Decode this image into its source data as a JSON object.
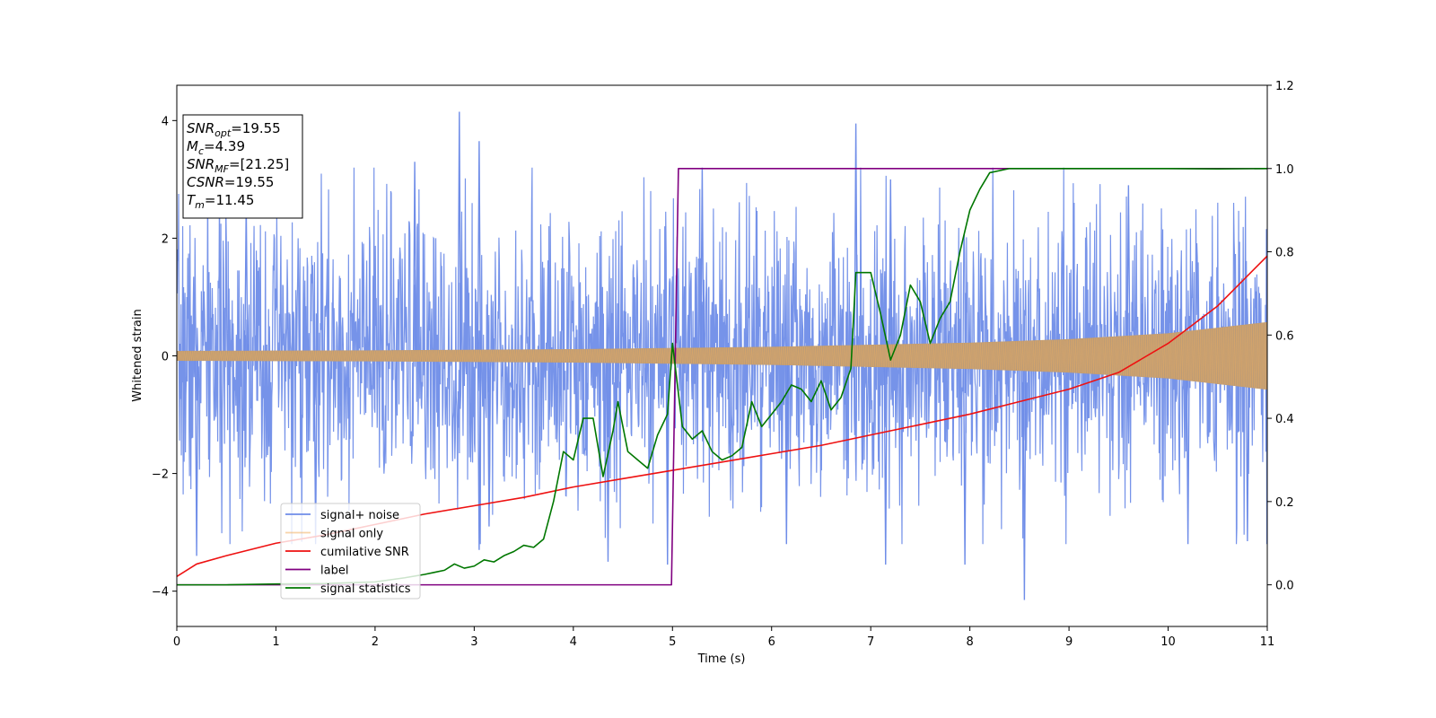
{
  "chart_data": {
    "type": "line",
    "title": "",
    "xlabel": "Time (s)",
    "ylabel_left": "Whitened strain",
    "ylabel_right": "",
    "xlim": [
      0,
      11
    ],
    "ylim_left": [
      -4.6,
      4.6
    ],
    "ylim_right": [
      -0.1,
      1.2
    ],
    "xticks": [
      0,
      1,
      2,
      3,
      4,
      5,
      6,
      7,
      8,
      9,
      10,
      11
    ],
    "yticks_left": [
      -4,
      -2,
      0,
      2,
      4
    ],
    "yticks_right": [
      0.0,
      0.2,
      0.4,
      0.6,
      0.8,
      1.0,
      1.2
    ],
    "grid": false,
    "legend_position": "lower-left",
    "colors": {
      "signal_noise": "#6f8de8",
      "signal_only": "#f0b060",
      "signal_overlap": "#bc9b76",
      "cumulative_snr": "#ee1111",
      "label": "#800080",
      "signal_statistics": "#007700"
    },
    "annotation": {
      "lines": [
        {
          "main": "SNR",
          "sub": "opt",
          "value": "=19.55"
        },
        {
          "main": "M",
          "sub": "c",
          "value": "=4.39"
        },
        {
          "main": "SNR",
          "sub": "MF",
          "value": "=[21.25]"
        },
        {
          "main": "CSNR",
          "sub": "",
          "value": "=19.55"
        },
        {
          "main": "T",
          "sub": "m",
          "value": "=11.45"
        }
      ]
    },
    "series": [
      {
        "name": "signal+ noise",
        "axis": "left",
        "kind": "noise",
        "envelope": [
          [
            0,
            2.3
          ],
          [
            5,
            2.3
          ],
          [
            11,
            2.3
          ]
        ],
        "spikes": [
          [
            0.2,
            -3.4
          ],
          [
            0.7,
            2.6
          ],
          [
            1.4,
            -3.2
          ],
          [
            2.4,
            3.3
          ],
          [
            2.85,
            4.15
          ],
          [
            3.05,
            3.65
          ],
          [
            3.05,
            -3.3
          ],
          [
            3.15,
            -2.9
          ],
          [
            4.35,
            -3.5
          ],
          [
            4.95,
            -3.55
          ],
          [
            5.3,
            3.2
          ],
          [
            6.15,
            -3.2
          ],
          [
            6.85,
            3.95
          ],
          [
            7.15,
            -3.55
          ],
          [
            7.2,
            3.0
          ],
          [
            7.95,
            -3.55
          ],
          [
            8.55,
            -4.15
          ],
          [
            9.6,
            2.9
          ],
          [
            10.2,
            -3.2
          ],
          [
            10.8,
            -3.15
          ]
        ]
      },
      {
        "name": "signal only",
        "axis": "left",
        "kind": "chirp",
        "amplitude": [
          [
            0,
            0.08
          ],
          [
            2,
            0.09
          ],
          [
            4,
            0.11
          ],
          [
            6,
            0.15
          ],
          [
            8,
            0.22
          ],
          [
            9,
            0.28
          ],
          [
            10,
            0.38
          ],
          [
            11,
            0.57
          ]
        ]
      },
      {
        "name": "cumilative SNR",
        "axis": "right",
        "kind": "line",
        "points": [
          [
            0,
            0.02
          ],
          [
            0.2,
            0.05
          ],
          [
            0.5,
            0.07
          ],
          [
            1,
            0.1
          ],
          [
            1.5,
            0.12
          ],
          [
            2,
            0.145
          ],
          [
            2.5,
            0.17
          ],
          [
            3,
            0.19
          ],
          [
            3.5,
            0.21
          ],
          [
            4,
            0.235
          ],
          [
            4.5,
            0.255
          ],
          [
            5,
            0.275
          ],
          [
            5.5,
            0.295
          ],
          [
            6,
            0.315
          ],
          [
            6.5,
            0.335
          ],
          [
            7,
            0.36
          ],
          [
            7.5,
            0.385
          ],
          [
            8,
            0.41
          ],
          [
            8.5,
            0.44
          ],
          [
            9,
            0.47
          ],
          [
            9.5,
            0.51
          ],
          [
            10,
            0.58
          ],
          [
            10.5,
            0.67
          ],
          [
            11,
            0.79
          ]
        ]
      },
      {
        "name": "label",
        "axis": "right",
        "kind": "line",
        "points": [
          [
            0,
            0.0
          ],
          [
            4.99,
            0.0
          ],
          [
            5.06,
            1.0
          ],
          [
            11,
            1.0
          ]
        ]
      },
      {
        "name": "signal statistics",
        "axis": "right",
        "kind": "line",
        "points": [
          [
            0,
            0.0
          ],
          [
            0.5,
            0.0
          ],
          [
            1.0,
            0.002
          ],
          [
            1.5,
            0.003
          ],
          [
            2.0,
            0.007
          ],
          [
            2.3,
            0.017
          ],
          [
            2.5,
            0.025
          ],
          [
            2.6,
            0.03
          ],
          [
            2.7,
            0.035
          ],
          [
            2.8,
            0.05
          ],
          [
            2.9,
            0.04
          ],
          [
            3.0,
            0.045
          ],
          [
            3.1,
            0.06
          ],
          [
            3.2,
            0.055
          ],
          [
            3.3,
            0.07
          ],
          [
            3.4,
            0.08
          ],
          [
            3.5,
            0.095
          ],
          [
            3.6,
            0.09
          ],
          [
            3.7,
            0.11
          ],
          [
            3.8,
            0.2
          ],
          [
            3.9,
            0.32
          ],
          [
            4.0,
            0.3
          ],
          [
            4.1,
            0.4
          ],
          [
            4.2,
            0.4
          ],
          [
            4.3,
            0.26
          ],
          [
            4.4,
            0.37
          ],
          [
            4.45,
            0.44
          ],
          [
            4.55,
            0.32
          ],
          [
            4.65,
            0.3
          ],
          [
            4.75,
            0.28
          ],
          [
            4.85,
            0.36
          ],
          [
            4.95,
            0.41
          ],
          [
            5.0,
            0.58
          ],
          [
            5.1,
            0.38
          ],
          [
            5.2,
            0.35
          ],
          [
            5.3,
            0.37
          ],
          [
            5.4,
            0.32
          ],
          [
            5.5,
            0.3
          ],
          [
            5.6,
            0.31
          ],
          [
            5.7,
            0.33
          ],
          [
            5.8,
            0.44
          ],
          [
            5.9,
            0.38
          ],
          [
            6.0,
            0.41
          ],
          [
            6.1,
            0.44
          ],
          [
            6.2,
            0.48
          ],
          [
            6.3,
            0.47
          ],
          [
            6.4,
            0.44
          ],
          [
            6.5,
            0.49
          ],
          [
            6.6,
            0.42
          ],
          [
            6.7,
            0.45
          ],
          [
            6.8,
            0.52
          ],
          [
            6.85,
            0.75
          ],
          [
            7.0,
            0.75
          ],
          [
            7.1,
            0.65
          ],
          [
            7.2,
            0.54
          ],
          [
            7.3,
            0.6
          ],
          [
            7.4,
            0.72
          ],
          [
            7.5,
            0.68
          ],
          [
            7.6,
            0.58
          ],
          [
            7.7,
            0.64
          ],
          [
            7.8,
            0.68
          ],
          [
            7.9,
            0.8
          ],
          [
            8.0,
            0.9
          ],
          [
            8.1,
            0.95
          ],
          [
            8.2,
            0.99
          ],
          [
            8.4,
            1.0
          ],
          [
            9.0,
            1.0
          ],
          [
            9.5,
            1.0
          ],
          [
            10.0,
            1.0
          ],
          [
            10.5,
            0.999
          ],
          [
            11.0,
            1.0
          ]
        ]
      }
    ]
  }
}
